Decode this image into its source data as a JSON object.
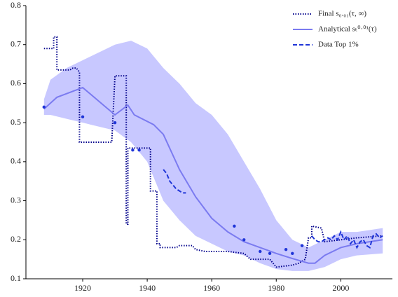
{
  "chart_data": {
    "type": "line",
    "xlim": [
      1902.4,
      2016
    ],
    "ylim": [
      0.1,
      0.8
    ],
    "xticks": [
      1920,
      1940,
      1960,
      1980,
      2000
    ],
    "yticks": [
      0.1,
      0.2,
      0.3,
      0.4,
      0.5,
      0.6,
      0.7,
      0.8
    ],
    "legend": "upper right",
    "band": {
      "color": "#c8c8ff",
      "x": [
        1908,
        1910,
        1915,
        1920,
        1925,
        1930,
        1935,
        1940,
        1945,
        1950,
        1955,
        1960,
        1965,
        1970,
        1975,
        1980,
        1985,
        1990,
        1995,
        2000,
        2005,
        2013
      ],
      "upper": [
        0.56,
        0.61,
        0.64,
        0.66,
        0.68,
        0.7,
        0.71,
        0.69,
        0.64,
        0.6,
        0.55,
        0.52,
        0.47,
        0.4,
        0.33,
        0.25,
        0.2,
        0.18,
        0.2,
        0.22,
        0.22,
        0.23
      ],
      "lower": [
        0.52,
        0.52,
        0.51,
        0.5,
        0.49,
        0.48,
        0.45,
        0.4,
        0.3,
        0.25,
        0.21,
        0.19,
        0.17,
        0.16,
        0.14,
        0.125,
        0.12,
        0.12,
        0.13,
        0.15,
        0.16,
        0.165
      ]
    },
    "series": [
      {
        "name": "Final s₀.₀₁(τ, ∞)",
        "color": "#00008b",
        "style": "dotted",
        "x": [
          1908,
          1911,
          1911,
          1912,
          1912,
          1916,
          1917,
          1918,
          1919,
          1919,
          1920,
          1929,
          1930,
          1933.5,
          1933.5,
          1934,
          1934,
          1941,
          1941,
          1943,
          1943,
          1944,
          1944,
          1949,
          1950,
          1954,
          1955,
          1958,
          1965,
          1970,
          1972,
          1978,
          1980,
          1985,
          1987,
          1989,
          1990,
          1991,
          1991,
          1994,
          1995,
          2000,
          2005,
          2013
        ],
        "values": [
          0.69,
          0.69,
          0.72,
          0.72,
          0.635,
          0.635,
          0.64,
          0.64,
          0.63,
          0.45,
          0.45,
          0.45,
          0.62,
          0.62,
          0.24,
          0.24,
          0.435,
          0.435,
          0.325,
          0.325,
          0.19,
          0.19,
          0.18,
          0.18,
          0.185,
          0.185,
          0.175,
          0.17,
          0.17,
          0.165,
          0.15,
          0.15,
          0.13,
          0.135,
          0.14,
          0.15,
          0.205,
          0.205,
          0.235,
          0.23,
          0.195,
          0.2,
          0.205,
          0.21
        ]
      },
      {
        "name": "Analytical sₜ⁰·⁰¹(τ)",
        "color": "#7b7bf0",
        "style": "solid",
        "x": [
          1908,
          1912,
          1920,
          1925,
          1930,
          1934,
          1936,
          1942,
          1945,
          1950,
          1955,
          1960,
          1965,
          1970,
          1975,
          1980,
          1985,
          1990,
          1992,
          1995,
          2000,
          2005,
          2013
        ],
        "values": [
          0.535,
          0.565,
          0.59,
          0.555,
          0.52,
          0.545,
          0.52,
          0.495,
          0.47,
          0.38,
          0.31,
          0.255,
          0.22,
          0.195,
          0.18,
          0.165,
          0.152,
          0.14,
          0.14,
          0.16,
          0.18,
          0.19,
          0.2
        ]
      },
      {
        "name": "Data Top 1%",
        "color": "#1f35d8",
        "style": "dashed",
        "x": [
          1908,
          1909,
          1920,
          1921,
          1930,
          1931,
          1935.5,
          1936,
          1937.5,
          1938,
          1945,
          1946,
          1947,
          1948,
          1949,
          1950,
          1951,
          1952,
          1953,
          1967,
          1968,
          1970,
          1971,
          1975,
          1976,
          1978,
          1979,
          1983,
          1984,
          1985,
          1986,
          1988,
          1989,
          1991,
          1992,
          1993,
          1994,
          1995,
          1996,
          1997,
          1998,
          1999,
          2000,
          2001,
          2002,
          2003,
          2004,
          2005,
          2006,
          2007,
          2008,
          2009,
          2010,
          2011,
          2012,
          2013
        ],
        "values": [
          0.54,
          null,
          0.515,
          null,
          0.5,
          null,
          0.43,
          null,
          0.43,
          null,
          0.38,
          0.37,
          0.35,
          0.34,
          0.33,
          0.325,
          0.32,
          0.32,
          null,
          0.235,
          null,
          0.2,
          null,
          0.17,
          null,
          0.165,
          null,
          0.175,
          null,
          0.165,
          null,
          0.185,
          null,
          0.21,
          0.2,
          0.195,
          0.195,
          0.2,
          0.205,
          0.2,
          0.21,
          0.2,
          0.22,
          0.2,
          0.21,
          0.19,
          0.2,
          0.18,
          0.195,
          0.2,
          0.185,
          0.18,
          0.21,
          0.215,
          0.205,
          0.21
        ]
      }
    ]
  }
}
